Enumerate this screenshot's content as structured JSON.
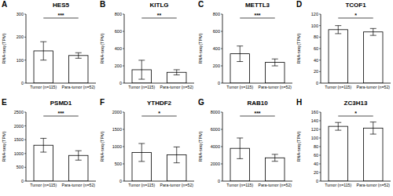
{
  "chart_data": [
    {
      "type": "bar",
      "panel_label": "A",
      "title": "HES5",
      "y_label": "RNA-seq (TPM)",
      "categories": [
        "Tumor (n=115)",
        "Para-tumor (n=52)"
      ],
      "values": [
        140,
        120
      ],
      "errors": [
        40,
        12
      ],
      "significance": "***",
      "color": "#ffffff",
      "ylim": [
        0,
        300
      ],
      "yticks": [
        0,
        100,
        200,
        300
      ]
    },
    {
      "type": "bar",
      "panel_label": "B",
      "title": "KITLG",
      "y_label": "RNA-seq (TPM)",
      "categories": [
        "Tumor (n=115)",
        "Para-tumor (n=52)"
      ],
      "values": [
        155,
        125
      ],
      "errors": [
        110,
        30
      ],
      "significance": "**",
      "color": "#ffffff",
      "ylim": [
        0,
        800
      ],
      "yticks": [
        0,
        200,
        400,
        600,
        800
      ]
    },
    {
      "type": "bar",
      "panel_label": "C",
      "title": "METTL3",
      "y_label": "RNA-seq (TPM)",
      "categories": [
        "Tumor (n=115)",
        "Para-tumor (n=52)"
      ],
      "values": [
        340,
        240
      ],
      "errors": [
        90,
        40
      ],
      "significance": "***",
      "color": "#ffffff",
      "ylim": [
        0,
        800
      ],
      "yticks": [
        0,
        200,
        400,
        600,
        800
      ]
    },
    {
      "type": "bar",
      "panel_label": "D",
      "title": "TCOF1",
      "y_label": "RNA-seq (TPM)",
      "categories": [
        "Tumor (n=115)",
        "Para-tumor (n=52)"
      ],
      "values": [
        93,
        89
      ],
      "errors": [
        7,
        6
      ],
      "significance": "*",
      "color": "#ffffff",
      "ylim": [
        0,
        120
      ],
      "yticks": [
        0,
        20,
        40,
        60,
        80,
        100,
        120
      ]
    },
    {
      "type": "bar",
      "panel_label": "E",
      "title": "PSMD1",
      "y_label": "RNA-seq (TPM)",
      "categories": [
        "Tumor (n=115)",
        "Para-tumor (n=52)"
      ],
      "values": [
        1300,
        930
      ],
      "errors": [
        250,
        170
      ],
      "significance": "***",
      "color": "#ffffff",
      "ylim": [
        0,
        2500
      ],
      "yticks": [
        0,
        500,
        1000,
        1500,
        2000,
        2500
      ]
    },
    {
      "type": "bar",
      "panel_label": "F",
      "title": "YTHDF2",
      "y_label": "RNA-seq (TPM)",
      "categories": [
        "Tumor (n=115)",
        "Para-tumor (n=52)"
      ],
      "values": [
        830,
        760
      ],
      "errors": [
        260,
        230
      ],
      "significance": "*",
      "color": "#ffffff",
      "ylim": [
        0,
        2000
      ],
      "yticks": [
        0,
        500,
        1000,
        1500,
        2000
      ]
    },
    {
      "type": "bar",
      "panel_label": "G",
      "title": "RAB10",
      "y_label": "RNA-seq (TPM)",
      "categories": [
        "Tumor (n=115)",
        "Para-tumor (n=52)"
      ],
      "values": [
        3800,
        2700
      ],
      "errors": [
        1200,
        400
      ],
      "significance": "***",
      "color": "#ffffff",
      "ylim": [
        0,
        8000
      ],
      "yticks": [
        0,
        2000,
        4000,
        6000,
        8000
      ]
    },
    {
      "type": "bar",
      "panel_label": "H",
      "title": "ZC3H13",
      "y_label": "RNA-seq (TPM)",
      "categories": [
        "Tumor (n=115)",
        "Para-tumor (n=52)"
      ],
      "values": [
        127,
        123
      ],
      "errors": [
        9,
        14
      ],
      "significance": "*",
      "color": "#ffffff",
      "ylim": [
        0,
        160
      ],
      "yticks": [
        0,
        20,
        40,
        60,
        80,
        100,
        120,
        140,
        160
      ]
    }
  ]
}
